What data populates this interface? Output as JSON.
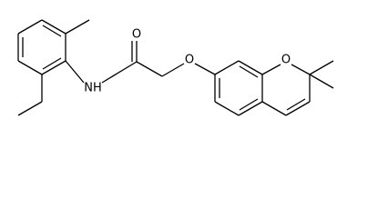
{
  "atoms": [
    {
      "label": "O"
    },
    {
      "label": "NH"
    },
    {
      "label": "O"
    },
    {
      "label": "O"
    }
  ]
}
